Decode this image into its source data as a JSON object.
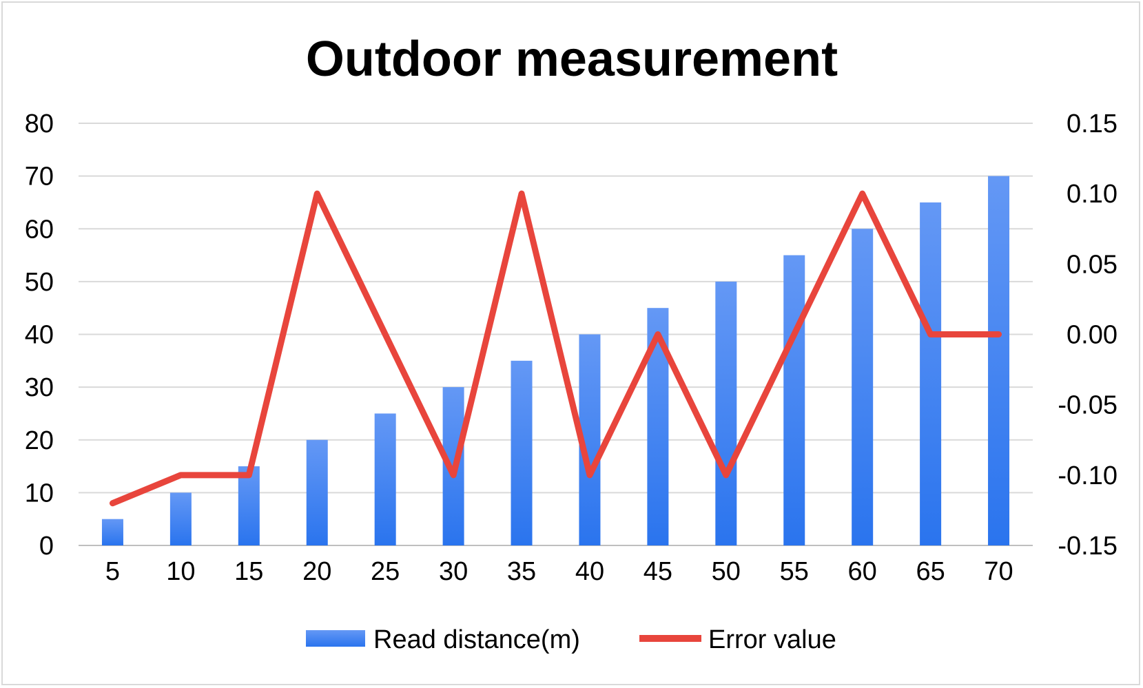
{
  "chart_data": {
    "type": "bar",
    "title": "Outdoor measurement",
    "categories": [
      "5",
      "10",
      "15",
      "20",
      "25",
      "30",
      "35",
      "40",
      "45",
      "50",
      "55",
      "60",
      "65",
      "70"
    ],
    "series": [
      {
        "name": "Read distance(m)",
        "type": "bar",
        "axis": "left",
        "color": "#3a86f5",
        "values": [
          5,
          10,
          15,
          20,
          25,
          30,
          35,
          40,
          45,
          50,
          55,
          60,
          65,
          70
        ]
      },
      {
        "name": "Error value",
        "type": "line",
        "axis": "right",
        "color": "#e8453c",
        "values": [
          -0.12,
          -0.1,
          -0.1,
          0.1,
          0.0,
          -0.1,
          0.1,
          -0.1,
          0.0,
          -0.1,
          0.0,
          0.1,
          0.0,
          0.0
        ]
      }
    ],
    "y_left": {
      "ylim": [
        0,
        80
      ],
      "ticks": [
        "0",
        "10",
        "20",
        "30",
        "40",
        "50",
        "60",
        "70",
        "80"
      ]
    },
    "y_right": {
      "ylim": [
        -0.15,
        0.15
      ],
      "ticks": [
        "-0.15",
        "-0.10",
        "-0.05",
        "0.00",
        "0.05",
        "0.10",
        "0.15"
      ]
    },
    "xlabel": "",
    "ylabel": "",
    "grid": true,
    "legend_position": "bottom"
  }
}
